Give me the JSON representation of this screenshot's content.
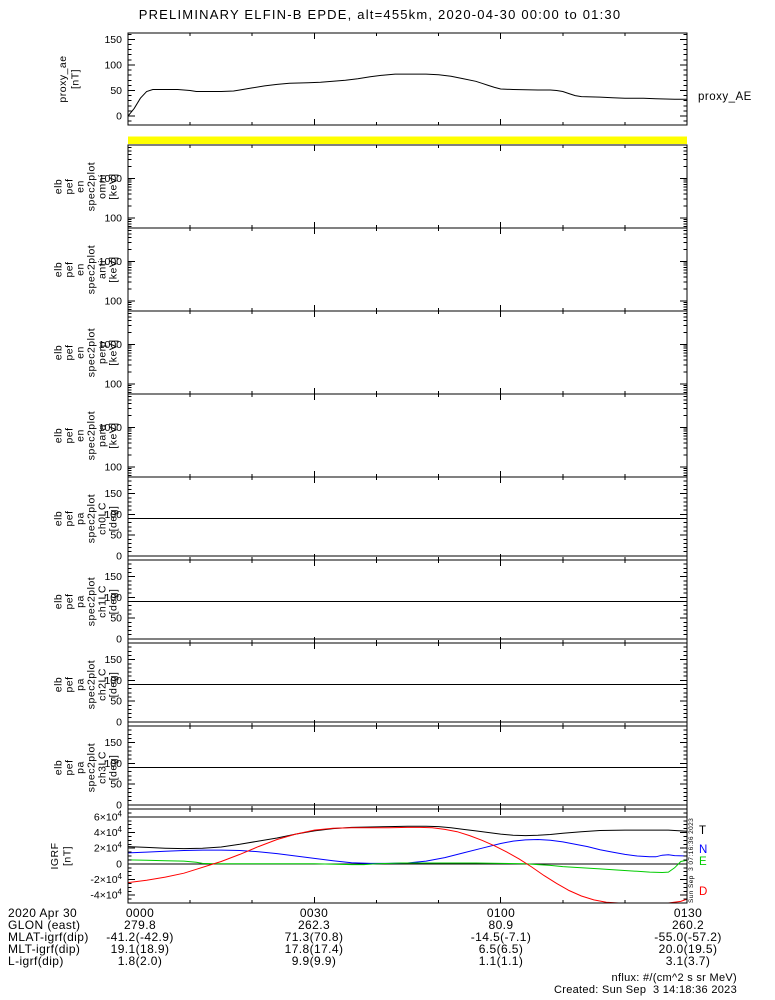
{
  "title": "PRELIMINARY ELFIN-B EPDE, alt=455km, 2020-04-30 00:00 to 01:30",
  "colors": {
    "background": "#ffffff",
    "axis": "#000000",
    "top_bar": "#ffff00",
    "igrf_T": "#000000",
    "igrf_N": "#0000ff",
    "igrf_E": "#00cc00",
    "igrf_D": "#ff0000"
  },
  "xaxis": {
    "tick_labels": [
      "0000",
      "0030",
      "0100",
      "0130"
    ],
    "tick_minutes": [
      0,
      30,
      60,
      90
    ],
    "minor_step_minutes": 10,
    "range_minutes": [
      0,
      90
    ]
  },
  "chart_data": [
    {
      "id": "proxy_ae",
      "type": "line",
      "ylabel_lines": [
        "proxy_ae",
        "[nT]"
      ],
      "right_label": "proxy_AE",
      "color": "#000000",
      "ylim": [
        -17.5,
        162.5
      ],
      "yticks": [
        0,
        50,
        100,
        150
      ],
      "ytick_labels": [
        "0",
        "50",
        "100",
        "150"
      ],
      "y_minor_step": 10,
      "x_minutes": [
        0,
        1,
        2,
        3,
        4,
        8,
        10,
        11,
        15,
        17,
        18,
        20,
        22,
        24,
        26,
        29,
        31,
        33,
        35,
        37,
        39,
        41,
        43,
        48,
        50,
        52,
        54,
        56,
        57,
        58,
        59,
        60,
        62,
        66,
        68,
        69,
        70,
        71,
        72,
        73,
        76,
        78,
        80,
        83,
        85,
        88,
        90
      ],
      "values": [
        0,
        15,
        35,
        48,
        52,
        52,
        50,
        48,
        48,
        49,
        51,
        55,
        59,
        62,
        64,
        65,
        66,
        68,
        70,
        73,
        77,
        80,
        82,
        82,
        81,
        78,
        73,
        68,
        64,
        60,
        56,
        53,
        52,
        51,
        51,
        50,
        48,
        44,
        40,
        38,
        37,
        36,
        35,
        35,
        34,
        33,
        33
      ]
    },
    {
      "id": "elb_pef_en_spec2plot_omni",
      "type": "spectrogram",
      "ylabel_lines": [
        "elb",
        "pef",
        "en",
        "spec2plot",
        "omni",
        "[keV]"
      ],
      "yscale": "log",
      "ylim": [
        55,
        7000
      ],
      "yticks": [
        100,
        1000
      ],
      "ytick_labels": [
        "100",
        "1000"
      ],
      "no_data": true,
      "has_top_bar": true
    },
    {
      "id": "elb_pef_en_spec2plot_anti",
      "type": "spectrogram",
      "ylabel_lines": [
        "elb",
        "pef",
        "en",
        "spec2plot",
        "anti",
        "[keV]"
      ],
      "yscale": "log",
      "ylim": [
        55,
        7000
      ],
      "yticks": [
        100,
        1000
      ],
      "ytick_labels": [
        "100",
        "1000"
      ],
      "no_data": true
    },
    {
      "id": "elb_pef_en_spec2plot_perp",
      "type": "spectrogram",
      "ylabel_lines": [
        "elb",
        "pef",
        "en",
        "spec2plot",
        "perp",
        "[keV]"
      ],
      "yscale": "log",
      "ylim": [
        55,
        7000
      ],
      "yticks": [
        100,
        1000
      ],
      "ytick_labels": [
        "100",
        "1000"
      ],
      "no_data": true
    },
    {
      "id": "elb_pef_en_spec2plot_para",
      "type": "spectrogram",
      "ylabel_lines": [
        "elb",
        "pef",
        "en",
        "spec2plot",
        "para",
        "[keV]"
      ],
      "yscale": "log",
      "ylim": [
        55,
        7000
      ],
      "yticks": [
        100,
        1000
      ],
      "ytick_labels": [
        "100",
        "1000"
      ],
      "no_data": true
    },
    {
      "id": "elb_pef_pa_spec2plot_ch0LC",
      "type": "spectrogram",
      "ylabel_lines": [
        "elb",
        "pef",
        "pa",
        "spec2plot",
        "ch0LC",
        "[deg]"
      ],
      "yscale": "linear",
      "ylim": [
        -10,
        190
      ],
      "yticks": [
        0,
        50,
        100,
        150
      ],
      "ytick_labels": [
        "0",
        "50",
        "100",
        "150"
      ],
      "y_minor_step": 10,
      "hlines": [
        0,
        90
      ],
      "no_data": true
    },
    {
      "id": "elb_pef_pa_spec2plot_ch1LC",
      "type": "spectrogram",
      "ylabel_lines": [
        "elb",
        "pef",
        "pa",
        "spec2plot",
        "ch1LC",
        "[deg]"
      ],
      "yscale": "linear",
      "ylim": [
        -10,
        190
      ],
      "yticks": [
        0,
        50,
        100,
        150
      ],
      "ytick_labels": [
        "0",
        "50",
        "100",
        "150"
      ],
      "y_minor_step": 10,
      "hlines": [
        0,
        90
      ],
      "no_data": true
    },
    {
      "id": "elb_pef_pa_spec2plot_ch2LC",
      "type": "spectrogram",
      "ylabel_lines": [
        "elb",
        "pef",
        "pa",
        "spec2plot",
        "ch2LC",
        "[deg]"
      ],
      "yscale": "linear",
      "ylim": [
        -10,
        190
      ],
      "yticks": [
        0,
        50,
        100,
        150
      ],
      "ytick_labels": [
        "0",
        "50",
        "100",
        "150"
      ],
      "y_minor_step": 10,
      "hlines": [
        0,
        90
      ],
      "no_data": true
    },
    {
      "id": "elb_pef_pa_spec2plot_ch3LC",
      "type": "spectrogram",
      "ylabel_lines": [
        "elb",
        "pef",
        "pa",
        "spec2plot",
        "ch3LC",
        "[deg]"
      ],
      "yscale": "linear",
      "ylim": [
        -10,
        190
      ],
      "yticks": [
        0,
        50,
        100,
        150
      ],
      "ytick_labels": [
        "0",
        "50",
        "100",
        "150"
      ],
      "y_minor_step": 10,
      "hlines": [
        0,
        90
      ],
      "no_data": true
    },
    {
      "id": "igrf",
      "type": "multiline",
      "ylabel_lines": [
        "IGRF",
        "[nT]"
      ],
      "ylim": [
        -50000,
        70000
      ],
      "yticks": [
        60000,
        40000,
        20000,
        0,
        -20000,
        -40000
      ],
      "ytick_labels": [
        "6×10^4",
        "4×10^4",
        "2×10^4",
        "0",
        "-2×10^4",
        "-4×10^4"
      ],
      "y_minor_step": 5000,
      "hlines": [
        60000,
        0
      ],
      "series": [
        {
          "name": "T",
          "color": "#000000",
          "x_minutes": [
            0,
            3,
            6,
            9,
            12,
            15,
            18,
            21,
            24,
            27,
            30,
            33,
            36,
            39,
            42,
            45,
            48,
            50,
            52,
            54,
            56,
            58,
            60,
            62,
            64,
            66,
            68,
            70,
            73,
            76,
            80,
            84,
            87,
            90
          ],
          "values": [
            22000,
            21000,
            20000,
            19500,
            20000,
            21500,
            25000,
            29000,
            33000,
            38000,
            42000,
            45000,
            46500,
            47000,
            47500,
            48000,
            48000,
            47500,
            46000,
            44000,
            42000,
            40000,
            38000,
            36500,
            36000,
            36500,
            37500,
            39000,
            41000,
            42500,
            43000,
            43000,
            43000,
            41500
          ]
        },
        {
          "name": "N",
          "color": "#0000ff",
          "x_minutes": [
            0,
            3,
            6,
            9,
            12,
            15,
            18,
            21,
            24,
            27,
            30,
            33,
            36,
            39,
            42,
            45,
            48,
            51,
            54,
            57,
            60,
            62,
            64,
            66,
            68,
            70,
            72,
            74,
            76,
            78,
            80,
            82,
            84,
            85,
            86,
            87,
            88,
            90
          ],
          "values": [
            14000,
            15000,
            16000,
            17000,
            17500,
            17500,
            17000,
            15500,
            13000,
            10000,
            7000,
            4000,
            1500,
            500,
            500,
            1000,
            3500,
            8000,
            14000,
            20000,
            26000,
            29000,
            30500,
            31000,
            30000,
            28000,
            25000,
            22000,
            18000,
            15000,
            12000,
            10000,
            9000,
            9000,
            11000,
            11500,
            10500,
            10000
          ]
        },
        {
          "name": "E",
          "color": "#00cc00",
          "x_minutes": [
            0,
            3,
            6,
            9,
            11,
            12,
            14,
            20,
            30,
            36,
            38,
            40,
            44,
            50,
            56,
            60,
            64,
            66,
            68,
            70,
            73,
            76,
            79,
            82,
            84,
            86,
            87,
            88,
            89,
            90
          ],
          "values": [
            5000,
            4500,
            4000,
            3500,
            2000,
            500,
            0,
            0,
            0,
            -1000,
            -1000,
            0,
            1000,
            1000,
            1000,
            500,
            0,
            -1000,
            -2000,
            -3500,
            -5000,
            -6500,
            -8000,
            -9500,
            -10500,
            -11000,
            -10500,
            -5000,
            3000,
            4500
          ]
        },
        {
          "name": "D",
          "color": "#ff0000",
          "x_minutes": [
            0,
            3,
            6,
            9,
            11,
            13,
            15,
            18,
            21,
            24,
            27,
            30,
            33,
            36,
            39,
            42,
            45,
            47,
            49,
            51,
            53,
            55,
            57,
            59,
            61,
            63,
            65,
            67,
            69,
            71,
            73,
            75,
            77,
            79,
            81,
            84,
            87,
            89,
            90
          ],
          "values": [
            -24000,
            -21000,
            -17000,
            -12000,
            -7000,
            -2000,
            3000,
            12000,
            22000,
            31000,
            38000,
            43000,
            45500,
            46000,
            46000,
            46000,
            46500,
            46500,
            46000,
            44000,
            41000,
            36000,
            30000,
            23000,
            15000,
            6000,
            -4000,
            -15000,
            -25000,
            -34000,
            -41000,
            -46000,
            -49000,
            -51000,
            -52000,
            -52000,
            -51500,
            -48000,
            -45000
          ]
        }
      ]
    }
  ],
  "footer": {
    "rows": [
      {
        "label": "2020 Apr 30",
        "values": [
          "0000",
          "0030",
          "0100",
          "0130"
        ]
      },
      {
        "label": "GLON (east)",
        "values": [
          "279.8",
          "262.3",
          "80.9",
          "260.2"
        ]
      },
      {
        "label": "MLAT-igrf(dip)",
        "values": [
          "-41.2(-42.9)",
          "71.3(70.8)",
          "-14.5(-7.1)",
          "-55.0(-57.2)"
        ]
      },
      {
        "label": "MLT-igrf(dip)",
        "values": [
          "19.1(18.9)",
          "17.8(17.4)",
          "6.5(6.5)",
          "20.0(19.5)"
        ]
      },
      {
        "label": "L-igrf(dip)",
        "values": [
          "1.8(2.0)",
          "9.9(9.9)",
          "1.1(1.1)",
          "3.1(3.7)"
        ]
      }
    ]
  },
  "notes": {
    "nflux": "nflux: #/(cm^2 s sr MeV)",
    "created": "Created: Sun Sep  3 14:18:36 2023",
    "side_timestamp": "Sun Sep  3 07:16:36 2023"
  }
}
